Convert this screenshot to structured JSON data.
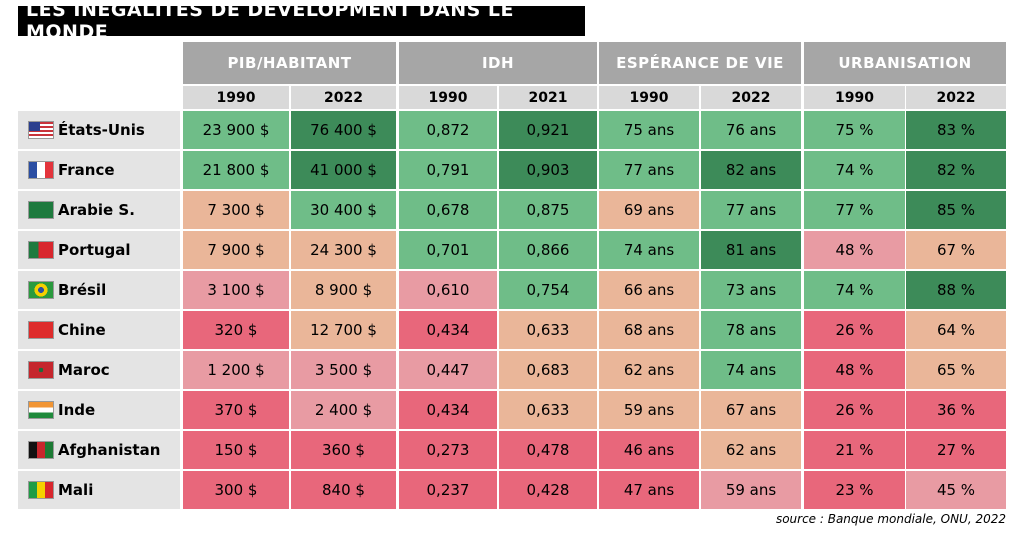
{
  "title": "LES INÉGALITÉS DE DÉVELOPMENT DANS LE MONDE",
  "groups": [
    "PIB/HABITANT",
    "IDH",
    "ESPÉRANCE DE VIE",
    "URBANISATION"
  ],
  "years": [
    "1990",
    "2022",
    "1990",
    "2021",
    "1990",
    "2022",
    "1990",
    "2022"
  ],
  "rows": [
    {
      "country": "États-Unis",
      "cells": [
        "23 900 $",
        "76 400 $",
        "0,872",
        "0,921",
        "75 ans",
        "76 ans",
        "75 %",
        "83 %"
      ]
    },
    {
      "country": "France",
      "cells": [
        "21 800 $",
        "41 000 $",
        "0,791",
        "0,903",
        "77 ans",
        "82 ans",
        "74 %",
        "82 %"
      ]
    },
    {
      "country": "Arabie S.",
      "cells": [
        "7 300 $",
        "30 400 $",
        "0,678",
        "0,875",
        "69 ans",
        "77 ans",
        "77 %",
        "85 %"
      ]
    },
    {
      "country": "Portugal",
      "cells": [
        "7 900 $",
        "24 300 $",
        "0,701",
        "0,866",
        "74 ans",
        "81 ans",
        "48 %",
        "67 %"
      ]
    },
    {
      "country": "Brésil",
      "cells": [
        "3 100 $",
        "8 900 $",
        "0,610",
        "0,754",
        "66 ans",
        "73 ans",
        "74 %",
        "88 %"
      ]
    },
    {
      "country": "Chine",
      "cells": [
        "320 $",
        "12 700 $",
        "0,434",
        "0,633",
        "68 ans",
        "78 ans",
        "26 %",
        "64 %"
      ]
    },
    {
      "country": "Maroc",
      "cells": [
        "1 200 $",
        "3 500 $",
        "0,447",
        "0,683",
        "62 ans",
        "74 ans",
        "48 %",
        "65 %"
      ]
    },
    {
      "country": "Inde",
      "cells": [
        "370 $",
        "2 400 $",
        "0,434",
        "0,633",
        "59 ans",
        "67 ans",
        "26 %",
        "36 %"
      ]
    },
    {
      "country": "Afghanistan",
      "cells": [
        "150 $",
        "360 $",
        "0,273",
        "0,478",
        "46 ans",
        "62 ans",
        "21 %",
        "27 %"
      ]
    },
    {
      "country": "Mali",
      "cells": [
        "300 $",
        "840 $",
        "0,237",
        "0,428",
        "47 ans",
        "59 ans",
        "23 %",
        "45 %"
      ]
    }
  ],
  "source": "source : Banque mondiale, ONU, 2022"
}
